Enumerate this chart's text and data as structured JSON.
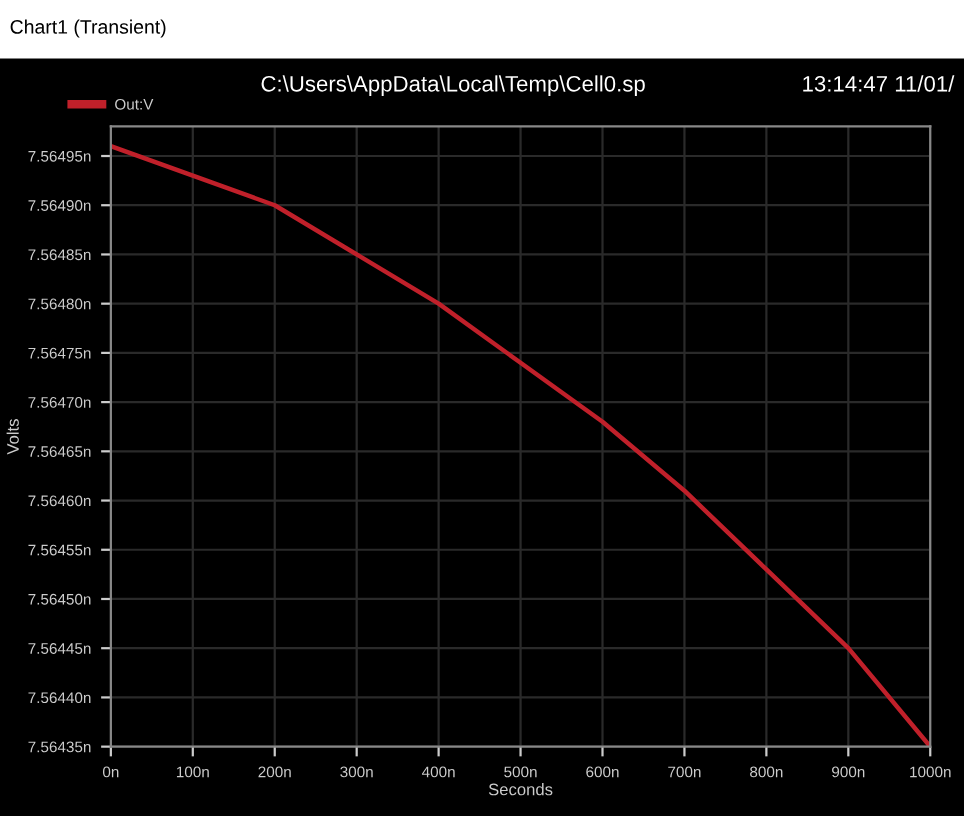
{
  "chart_data": {
    "type": "line",
    "title": "C:\\Users\\AppData\\Local\\Temp\\Cell0.sp",
    "annotations": [
      "Chart1 (Transient)",
      "13:14:47 11/01/"
    ],
    "xlabel": "Seconds",
    "ylabel": "Volts",
    "x": [
      0,
      100,
      200,
      300,
      400,
      500,
      600,
      700,
      800,
      900,
      1000
    ],
    "series": [
      {
        "name": "Out:V",
        "color": "#c0202a",
        "values": [
          7.56496,
          7.56493,
          7.5649,
          7.56485,
          7.5648,
          7.56474,
          7.56468,
          7.56461,
          7.56453,
          7.56445,
          7.56435
        ]
      }
    ],
    "xlim": [
      0,
      1000
    ],
    "xticks": [
      {
        "value": 0,
        "label": "0n"
      },
      {
        "value": 100,
        "label": "100n"
      },
      {
        "value": 200,
        "label": "200n"
      },
      {
        "value": 300,
        "label": "300n"
      },
      {
        "value": 400,
        "label": "400n"
      },
      {
        "value": 500,
        "label": "500n"
      },
      {
        "value": 600,
        "label": "600n"
      },
      {
        "value": 700,
        "label": "700n"
      },
      {
        "value": 800,
        "label": "800n"
      },
      {
        "value": 900,
        "label": "900n"
      },
      {
        "value": 1000,
        "label": "1000n"
      }
    ],
    "ylim": [
      7.56435,
      7.56498
    ],
    "yticks": [
      {
        "value": 7.56435,
        "label": "7.56435n"
      },
      {
        "value": 7.5644,
        "label": "7.56440n"
      },
      {
        "value": 7.56445,
        "label": "7.56445n"
      },
      {
        "value": 7.5645,
        "label": "7.56450n"
      },
      {
        "value": 7.56455,
        "label": "7.56455n"
      },
      {
        "value": 7.5646,
        "label": "7.56460n"
      },
      {
        "value": 7.56465,
        "label": "7.56465n"
      },
      {
        "value": 7.5647,
        "label": "7.56470n"
      },
      {
        "value": 7.56475,
        "label": "7.56475n"
      },
      {
        "value": 7.5648,
        "label": "7.56480n"
      },
      {
        "value": 7.56485,
        "label": "7.56485n"
      },
      {
        "value": 7.5649,
        "label": "7.56490n"
      },
      {
        "value": 7.56495,
        "label": "7.56495n"
      }
    ],
    "grid": true,
    "legend": "top left",
    "marker": "none",
    "line_style": "solid"
  }
}
